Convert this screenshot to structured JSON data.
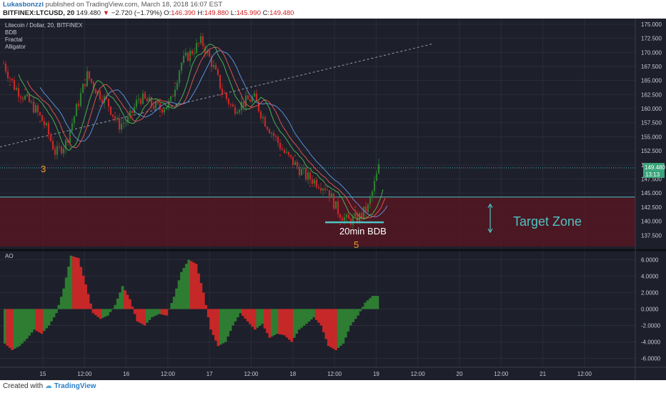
{
  "header": {
    "author": "Lukasbonzzi",
    "published": "published on TradingView.com, March 18, 2018 16:07 EST",
    "symbol": "BITFINEX:LTCUSD, 20",
    "last": "149.480",
    "change_arrow": "▼",
    "change": "−2.720 (−1.79%)",
    "o_label": "O:",
    "o_val": "146.390",
    "h_label": "H:",
    "h_val": "149.880",
    "l_label": "L:",
    "l_val": "145.990",
    "c_label": "C:",
    "c_val": "149.480"
  },
  "legend": {
    "title": "Litecoin / Dollar, 20, BITFINEX",
    "indicators": [
      "BDB",
      "Fractal",
      "Alligator"
    ]
  },
  "ao_label": "AO",
  "annotations": {
    "wave3": "3",
    "wave5": "5",
    "bdb_label": "20min BDB",
    "target_zone": "Target Zone",
    "price_tag": "149.480",
    "countdown_tag": "13:13"
  },
  "footer": {
    "created_with": "Created with",
    "brand": "TradingView"
  },
  "colors": {
    "panel_bg": "#1d1f2b",
    "grid": "#2a2d3a",
    "up": "#2e7d32",
    "down": "#c62828",
    "zone": "#5a1520",
    "accent": "#4fc3c3",
    "wave": "#f0a030",
    "ma_blue": "#5b8fd6",
    "ma_red": "#d9534f",
    "ma_green": "#4caf50"
  },
  "chart_data": [
    {
      "type": "candlestick",
      "title": "Litecoin / Dollar, 20, BITFINEX",
      "y_ticks": [
        137.5,
        140,
        142.5,
        145,
        147.5,
        150,
        152.5,
        155,
        157.5,
        160,
        162.5,
        165,
        167.5,
        170,
        172.5,
        175
      ],
      "y_tick_labels": [
        "137.500",
        "140.000",
        "142.500",
        "145.000",
        "147.500",
        "150.000",
        "152.500",
        "155.000",
        "157.500",
        "160.000",
        "162.500",
        "165.000",
        "167.500",
        "170.000",
        "172.500",
        "175.000"
      ],
      "ylim": [
        135,
        176
      ],
      "x_tick_labels": [
        "15",
        "12:00",
        "16",
        "12:00",
        "17",
        "12:00",
        "18",
        "12:00",
        "19",
        "12:00",
        "20",
        "12:00",
        "21",
        "12:00"
      ],
      "grid": true,
      "price_path": [
        {
          "t": 0,
          "p": 168
        },
        {
          "t": 1,
          "p": 164
        },
        {
          "t": 2,
          "p": 162
        },
        {
          "t": 3,
          "p": 160
        },
        {
          "t": 4,
          "p": 157
        },
        {
          "t": 5,
          "p": 152
        },
        {
          "t": 6,
          "p": 154
        },
        {
          "t": 7,
          "p": 160
        },
        {
          "t": 8,
          "p": 166
        },
        {
          "t": 9,
          "p": 163
        },
        {
          "t": 10,
          "p": 161
        },
        {
          "t": 11,
          "p": 157
        },
        {
          "t": 12,
          "p": 158
        },
        {
          "t": 13,
          "p": 162
        },
        {
          "t": 14,
          "p": 161
        },
        {
          "t": 15,
          "p": 160
        },
        {
          "t": 16,
          "p": 161
        },
        {
          "t": 17,
          "p": 168
        },
        {
          "t": 18,
          "p": 170
        },
        {
          "t": 19,
          "p": 172
        },
        {
          "t": 20,
          "p": 168
        },
        {
          "t": 21,
          "p": 163
        },
        {
          "t": 22,
          "p": 160
        },
        {
          "t": 23,
          "p": 161
        },
        {
          "t": 24,
          "p": 162
        },
        {
          "t": 25,
          "p": 158
        },
        {
          "t": 26,
          "p": 155
        },
        {
          "t": 27,
          "p": 152
        },
        {
          "t": 28,
          "p": 150
        },
        {
          "t": 29,
          "p": 148
        },
        {
          "t": 30,
          "p": 147
        },
        {
          "t": 31,
          "p": 146
        },
        {
          "t": 32,
          "p": 142
        },
        {
          "t": 33,
          "p": 140
        },
        {
          "t": 34,
          "p": 140.5
        },
        {
          "t": 35,
          "p": 142.5
        },
        {
          "t": 36,
          "p": 149.5
        }
      ],
      "last_price": 149.48,
      "target_zone": {
        "from": 135.5,
        "to": 144.3
      },
      "bdb_level": 139.8
    },
    {
      "type": "bar",
      "title": "AO",
      "y_ticks": [
        -6,
        -4,
        -2,
        0,
        2,
        4,
        6
      ],
      "y_tick_labels": [
        "-6.0000",
        "-4.0000",
        "-2.0000",
        "0.0000",
        "2.0000",
        "4.0000",
        "6.0000"
      ],
      "ylim": [
        -7,
        7
      ],
      "values": [
        -4.2,
        -5.0,
        -4.5,
        -3.6,
        -2.5,
        -3.0,
        -2.0,
        -0.5,
        2.5,
        6.5,
        6.2,
        3.0,
        -0.5,
        -1.2,
        -0.8,
        0.5,
        2.8,
        1.2,
        -1.5,
        -2.0,
        -1.0,
        -0.6,
        -0.8,
        1.5,
        4.5,
        6.0,
        5.5,
        2.0,
        -2.5,
        -4.5,
        -4.0,
        -2.0,
        -0.5,
        -1.5,
        -2.5,
        -1.8,
        -3.5,
        -3.0,
        -3.2,
        -4.0,
        -2.5,
        -1.8,
        -1.0,
        -2.0,
        -4.5,
        -5.0,
        -4.2,
        -2.0,
        -0.8,
        0.8,
        1.6
      ]
    }
  ]
}
